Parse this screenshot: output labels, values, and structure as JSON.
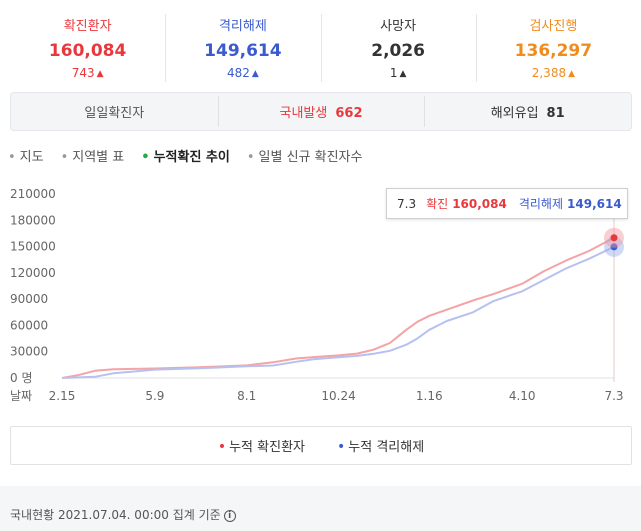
{
  "stats": [
    {
      "label": "확진환자",
      "value": "160,084",
      "delta": "743",
      "color": "#e8383d",
      "delta_color": "#e8383d"
    },
    {
      "label": "격리해제",
      "value": "149,614",
      "delta": "482",
      "color": "#3a5bd0",
      "delta_color": "#3a5bd0"
    },
    {
      "label": "사망자",
      "value": "2,026",
      "delta": "1",
      "color": "#333333",
      "delta_color": "#333333"
    },
    {
      "label": "검사진행",
      "value": "136,297",
      "delta": "2,388",
      "color": "#f08c1e",
      "delta_color": "#f08c1e"
    }
  ],
  "daily": {
    "label": "일일확진자",
    "domestic_label": "국내발생",
    "domestic_value": "662",
    "overseas_label": "해외유입",
    "overseas_value": "81"
  },
  "tabs": [
    {
      "label": "지도"
    },
    {
      "label": "지역별 표"
    },
    {
      "label": "누적확진 추이"
    },
    {
      "label": "일별 신규 확진자수"
    }
  ],
  "tooltip": {
    "date": "7.3",
    "confirmed_label": "확진",
    "confirmed_value": "160,084",
    "released_label": "격리해제",
    "released_value": "149,614"
  },
  "chart_data": {
    "type": "line",
    "y_ticks": [
      "210000",
      "180000",
      "150000",
      "120000",
      "90000",
      "60000",
      "30000",
      "0 명"
    ],
    "x_axis_label": "날짜",
    "x_ticks": [
      "2.15",
      "5.9",
      "8.1",
      "10.24",
      "1.16",
      "4.10",
      "7.3"
    ],
    "ylim": [
      0,
      210000
    ],
    "series": [
      {
        "name": "누적 확진환자",
        "color": "#f4a3a6",
        "values": [
          [
            "2.15",
            30
          ],
          [
            "3.1",
            3700
          ],
          [
            "3.15",
            8200
          ],
          [
            "4.1",
            9900
          ],
          [
            "5.9",
            10874
          ],
          [
            "6.15",
            12100
          ],
          [
            "7.1",
            12900
          ],
          [
            "8.1",
            14336
          ],
          [
            "8.25",
            17900
          ],
          [
            "9.15",
            22200
          ],
          [
            "10.1",
            23900
          ],
          [
            "10.24",
            25800
          ],
          [
            "11.10",
            27900
          ],
          [
            "11.25",
            32300
          ],
          [
            "12.10",
            40000
          ],
          [
            "12.25",
            55000
          ],
          [
            "1.5",
            64000
          ],
          [
            "1.16",
            71000
          ],
          [
            "2.1",
            78000
          ],
          [
            "2.25",
            88500
          ],
          [
            "3.15",
            96000
          ],
          [
            "4.10",
            107600
          ],
          [
            "4.30",
            122000
          ],
          [
            "5.20",
            134000
          ],
          [
            "6.10",
            145000
          ],
          [
            "7.3",
            160084
          ]
        ]
      },
      {
        "name": "누적 격리해제",
        "color": "#b7c1ef",
        "values": [
          [
            "2.15",
            10
          ],
          [
            "3.15",
            1400
          ],
          [
            "4.1",
            5400
          ],
          [
            "5.9",
            9600
          ],
          [
            "6.15",
            10900
          ],
          [
            "7.1",
            11800
          ],
          [
            "8.1",
            13300
          ],
          [
            "8.25",
            14300
          ],
          [
            "9.15",
            18500
          ],
          [
            "10.1",
            21500
          ],
          [
            "10.24",
            23700
          ],
          [
            "11.10",
            25200
          ],
          [
            "11.25",
            27600
          ],
          [
            "12.10",
            31000
          ],
          [
            "12.25",
            38000
          ],
          [
            "1.5",
            45000
          ],
          [
            "1.16",
            55000
          ],
          [
            "2.1",
            65000
          ],
          [
            "2.25",
            75000
          ],
          [
            "3.15",
            88000
          ],
          [
            "4.10",
            99000
          ],
          [
            "4.30",
            112000
          ],
          [
            "5.20",
            125000
          ],
          [
            "6.10",
            136000
          ],
          [
            "7.3",
            149614
          ]
        ]
      }
    ]
  },
  "legend": [
    {
      "label": "누적 확진환자",
      "color": "#e8383d"
    },
    {
      "label": "누적 격리해제",
      "color": "#3a5bd0"
    }
  ],
  "footer": {
    "text": "국내현황 2021.07.04. 00:00 집계 기준",
    "info_icon": "info-icon"
  }
}
